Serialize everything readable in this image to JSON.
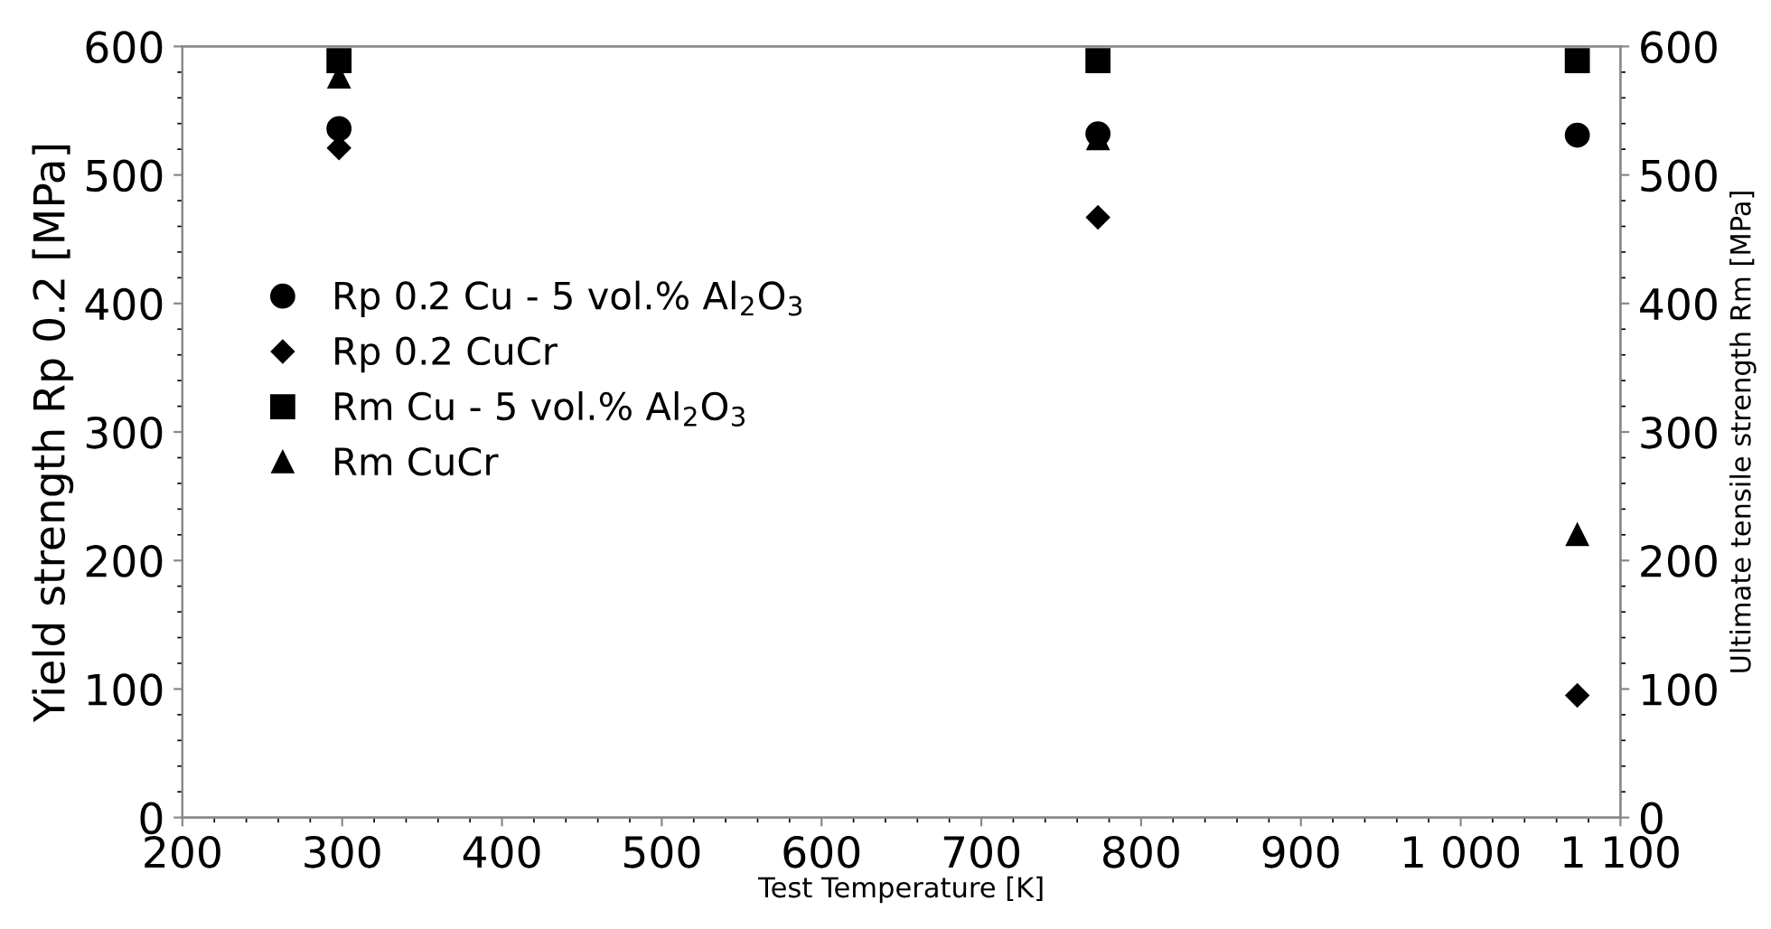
{
  "chart_data": {
    "type": "scatter",
    "xlabel": "Test Temperature [K]",
    "ylabel": "Yield strength Rp 0.2 [MPa]",
    "y2label": "Ultimate tensile strength Rm [MPa]",
    "xlim": [
      200,
      1100
    ],
    "xticks": [
      200,
      300,
      400,
      500,
      600,
      700,
      800,
      900,
      {
        "value": 1000,
        "label": "1 000"
      },
      {
        "value": 1100,
        "label": "1 100"
      }
    ],
    "ylim": [
      0,
      600
    ],
    "yticks": [
      0,
      100,
      200,
      300,
      400,
      500,
      600
    ],
    "y2lim": [
      0,
      600
    ],
    "y2ticks": [
      0,
      100,
      200,
      300,
      400,
      500,
      600
    ],
    "grid": false,
    "legend": "left",
    "series": [
      {
        "name": "Rp 0.2 Cu - 5 vol.% Al$_{2}$O$_{3}$",
        "color": "#000000",
        "marker": "circle",
        "x": [
          298,
          773,
          1073
        ],
        "values": [
          536,
          532,
          531
        ]
      },
      {
        "name": "Rp 0.2 CuCr",
        "color": "#000000",
        "marker": "diamond",
        "x": [
          298,
          773,
          1073
        ],
        "values": [
          521,
          467,
          95
        ]
      },
      {
        "name": "Rm Cu - 5 vol.% Al$_{2}$O$_{3}$",
        "color": "#000000",
        "marker": "square",
        "x": [
          298,
          773,
          1073
        ],
        "values": [
          589,
          589,
          589
        ]
      },
      {
        "name": "Rm CuCr",
        "color": "#000000",
        "marker": "triangle",
        "x": [
          298,
          773,
          1073
        ],
        "values": [
          576,
          528,
          220
        ]
      }
    ]
  }
}
